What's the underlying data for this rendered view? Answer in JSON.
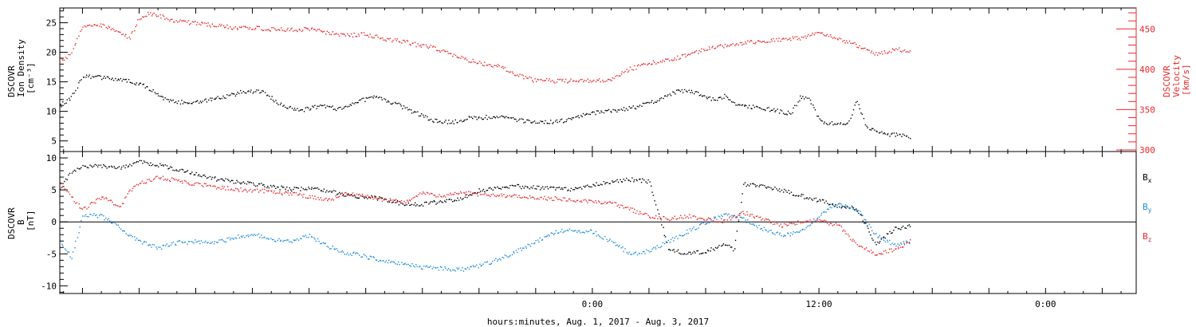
{
  "colors": {
    "black": "#000000",
    "red": "#e8282c",
    "blue": "#1c8ad8"
  },
  "xaxis": {
    "label": "hours:minutes, Aug.  1, 2017 - Aug.  3, 2017",
    "tick_labels": [
      {
        "text": "0:00",
        "hour": 24
      },
      {
        "text": "12:00",
        "hour": 36
      },
      {
        "text": "0:00",
        "hour": 48
      }
    ],
    "range_hours": [
      -4.2,
      52.8
    ],
    "data_end_hour": 40.8
  },
  "chart_data": [
    {
      "type": "line",
      "panel": "top",
      "ylabel_left": [
        "DSCOVR",
        "Ion Density",
        "[cm⁻³]"
      ],
      "ylabel_right": [
        "DSCOVR",
        "Velocity",
        "[km/s]"
      ],
      "left_ticks": [
        "5",
        "10",
        "15",
        "20",
        "25"
      ],
      "right_ticks": [
        "300",
        "350",
        "400",
        "450"
      ],
      "ylim_left": [
        3.2,
        27.5
      ],
      "ylim_right": [
        298,
        476
      ],
      "series": [
        {
          "name": "Ion Density",
          "axis": "left",
          "color": "black",
          "x": [
            -4.2,
            -3.6,
            -3.0,
            -2.0,
            -1.0,
            0.0,
            0.8,
            1.5,
            2.5,
            3.5,
            4.5,
            5.5,
            6.5,
            7.5,
            8.5,
            9.5,
            10.5,
            11.5,
            12.5,
            13.5,
            14.5,
            15.5,
            16.5,
            17.5,
            18.5,
            19.5,
            20.5,
            21.5,
            22.5,
            23.5,
            24.5,
            25.5,
            26.5,
            27.5,
            28.5,
            29.5,
            30.5,
            31.0,
            31.5,
            32.5,
            33.5,
            34.5,
            35.0,
            35.5,
            36.0,
            36.5,
            37.5,
            38.0,
            38.5,
            39.5,
            40.0,
            40.8
          ],
          "y": [
            11,
            12.5,
            16.2,
            15.8,
            15.5,
            14.7,
            13.5,
            11.8,
            11.6,
            11.9,
            12.5,
            13.4,
            13.4,
            11.2,
            10.2,
            11.0,
            10.5,
            11.8,
            12.4,
            11.5,
            10.0,
            8.6,
            8.2,
            9.0,
            9.1,
            9.0,
            8.4,
            8.2,
            8.5,
            9.5,
            10.1,
            10.3,
            11.0,
            12.0,
            13.6,
            13.2,
            12.0,
            12.7,
            11.5,
            10.8,
            10.3,
            9.7,
            12.5,
            12.2,
            8.5,
            8.0,
            8.0,
            12.0,
            7.5,
            6.2,
            6.1,
            5.8
          ]
        },
        {
          "name": "Velocity",
          "axis": "right",
          "color": "red",
          "x": [
            -4.2,
            -3.6,
            -3.0,
            -2.0,
            -1.0,
            -0.5,
            0.0,
            0.5,
            1.0,
            2.0,
            3.0,
            4.0,
            5.0,
            6.0,
            7.0,
            8.0,
            9.0,
            10.0,
            11.0,
            12.0,
            13.0,
            14.0,
            15.0,
            15.5,
            16.0,
            17.0,
            18.0,
            19.0,
            20.0,
            21.0,
            21.5,
            22.0,
            23.0,
            24.0,
            25.0,
            26.0,
            27.0,
            28.0,
            29.0,
            30.0,
            31.0,
            32.0,
            33.0,
            34.0,
            35.0,
            36.0,
            37.0,
            38.0,
            39.0,
            40.0,
            40.8
          ],
          "y": [
            410,
            420,
            455,
            455,
            445,
            440,
            463,
            470,
            467,
            460,
            458,
            455,
            452,
            452,
            450,
            450,
            450,
            446,
            443,
            444,
            438,
            435,
            429,
            429,
            423,
            415,
            408,
            405,
            394,
            386,
            388,
            386,
            386,
            386,
            388,
            401,
            408,
            412,
            418,
            426,
            430,
            433,
            436,
            438,
            439,
            446,
            438,
            430,
            420,
            425,
            424
          ]
        }
      ]
    },
    {
      "type": "line",
      "panel": "bottom",
      "ylabel_left": [
        "DSCOVR",
        "B",
        "[nT]"
      ],
      "left_ticks": [
        "-10",
        "-5",
        "0",
        "5",
        "10"
      ],
      "ylim": [
        -11.2,
        11
      ],
      "zero_line": true,
      "series": [
        {
          "name": "Bx",
          "color": "black",
          "x": [
            -4.2,
            -3.6,
            -3.0,
            -2.0,
            -1.0,
            -0.5,
            0.0,
            1.0,
            2.0,
            3.0,
            4.0,
            5.0,
            6.0,
            7.0,
            8.0,
            9.0,
            10.0,
            11.0,
            12.0,
            13.0,
            14.0,
            15.0,
            16.0,
            17.0,
            18.0,
            19.0,
            20.0,
            21.0,
            22.0,
            23.0,
            24.0,
            25.0,
            26.0,
            27.0,
            28.0,
            29.0,
            30.0,
            31.0,
            31.5,
            32.0,
            33.0,
            34.0,
            35.0,
            36.0,
            37.0,
            38.0,
            39.0,
            40.0,
            40.8
          ],
          "y": [
            5,
            8.0,
            8.8,
            8.8,
            8.4,
            9.0,
            9.4,
            9.0,
            8.3,
            7.5,
            6.8,
            6.4,
            6.0,
            5.6,
            5.2,
            5.2,
            5.0,
            4.2,
            4.0,
            3.6,
            2.8,
            2.8,
            3.3,
            3.6,
            5.0,
            5.3,
            5.6,
            5.4,
            5.2,
            5.2,
            5.8,
            6.4,
            6.7,
            6.4,
            -4.0,
            -5.0,
            -4.5,
            -3.5,
            -4.3,
            6.0,
            5.8,
            5.0,
            4.2,
            3.4,
            2.6,
            2.0,
            -3.5,
            -1.0,
            -0.5
          ]
        },
        {
          "name": "By",
          "color": "blue",
          "x": [
            -4.2,
            -3.6,
            -3.0,
            -2.0,
            -1.0,
            0.0,
            1.0,
            2.0,
            3.0,
            4.0,
            5.0,
            6.0,
            7.0,
            8.0,
            9.0,
            10.0,
            11.0,
            11.5,
            12.0,
            13.0,
            14.0,
            15.0,
            16.0,
            17.0,
            18.0,
            19.0,
            20.0,
            21.0,
            22.0,
            23.0,
            24.0,
            25.0,
            26.0,
            27.0,
            28.0,
            29.0,
            30.0,
            31.0,
            32.0,
            33.0,
            34.0,
            35.0,
            36.0,
            37.0,
            38.0,
            39.0,
            40.0,
            40.8
          ],
          "y": [
            -3,
            -5.5,
            1.2,
            1.0,
            -1.0,
            -3.0,
            -4.0,
            -3.2,
            -3.0,
            -3.2,
            -2.4,
            -1.8,
            -2.7,
            -3.0,
            -2.0,
            -3.8,
            -4.8,
            -5.0,
            -5.4,
            -6.0,
            -6.5,
            -7.0,
            -7.2,
            -7.4,
            -6.8,
            -5.8,
            -4.5,
            -3.0,
            -1.5,
            -1.2,
            -1.5,
            -3.0,
            -5.0,
            -4.5,
            -3.0,
            -1.5,
            0,
            1.2,
            0.5,
            -1.0,
            -2.0,
            -1.5,
            1.0,
            3.0,
            2.0,
            -2.0,
            -3.5,
            -3.0
          ]
        },
        {
          "name": "Bz",
          "color": "red",
          "x": [
            -4.2,
            -3.6,
            -3.0,
            -2.0,
            -1.0,
            -0.5,
            0.0,
            1.0,
            2.0,
            3.0,
            4.0,
            5.0,
            6.0,
            7.0,
            8.0,
            9.0,
            10.0,
            11.0,
            12.0,
            13.0,
            14.0,
            15.0,
            16.0,
            17.0,
            18.0,
            19.0,
            20.0,
            21.0,
            22.0,
            23.0,
            24.0,
            25.0,
            26.0,
            27.0,
            28.0,
            29.0,
            30.0,
            31.0,
            32.0,
            33.0,
            34.0,
            35.0,
            36.0,
            37.0,
            38.0,
            39.0,
            40.0,
            40.8
          ],
          "y": [
            6,
            4.0,
            2.0,
            4.0,
            2.5,
            5.0,
            6.0,
            7.0,
            6.5,
            6.0,
            5.5,
            5.2,
            5.0,
            4.8,
            4.5,
            4.0,
            3.5,
            4.5,
            4.0,
            3.5,
            3.2,
            4.5,
            4.2,
            4.6,
            4.4,
            4.2,
            4.0,
            3.8,
            3.7,
            3.5,
            3.3,
            3.0,
            2.0,
            1.0,
            0.5,
            1.0,
            0.5,
            0.2,
            1.5,
            0.5,
            -0.5,
            0,
            0.3,
            -0.5,
            -3.5,
            -5.0,
            -4.2,
            -3.0
          ]
        }
      ]
    }
  ],
  "legend": [
    {
      "text": "B",
      "sub": "x",
      "color": "black"
    },
    {
      "text": "B",
      "sub": "y",
      "color": "blue"
    },
    {
      "text": "B",
      "sub": "z",
      "color": "red"
    }
  ]
}
